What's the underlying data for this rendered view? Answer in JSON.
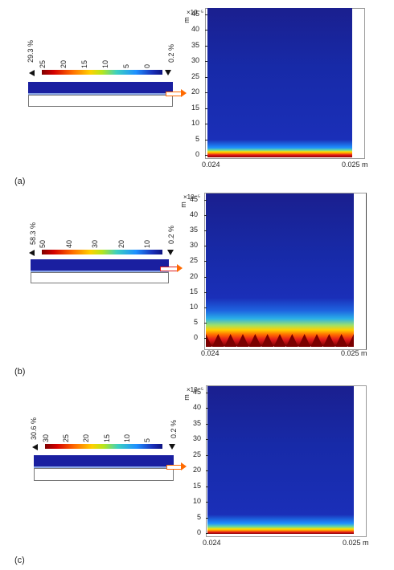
{
  "panels": [
    {
      "label": "(a)",
      "max_value": "29.3 %",
      "min_value": "0.2 %",
      "colorbar_ticks": [
        "25",
        "20",
        "15",
        "10",
        "5",
        "0"
      ],
      "y_exponent": "×10⁻⁵",
      "y_unit": "m",
      "y_ticks": [
        "45",
        "40",
        "35",
        "30",
        "25",
        "20",
        "15",
        "10",
        "5",
        "0"
      ],
      "x_tick_left": "0.024",
      "x_tick_right": "0.025 m",
      "interface": "flat"
    },
    {
      "label": "(b)",
      "max_value": "58.3 %",
      "min_value": "0.2 %",
      "colorbar_ticks": [
        "50",
        "40",
        "30",
        "20",
        "10"
      ],
      "y_exponent": "×10⁻⁵",
      "y_unit": "m",
      "y_ticks": [
        "45",
        "40",
        "35",
        "30",
        "25",
        "20",
        "15",
        "10",
        "5",
        "0"
      ],
      "x_tick_left": "0.024",
      "x_tick_right": "0.025 m",
      "interface": "sawtooth"
    },
    {
      "label": "(c)",
      "max_value": "30.6 %",
      "min_value": "0.2 %",
      "colorbar_ticks": [
        "30",
        "25",
        "20",
        "15",
        "10",
        "5"
      ],
      "y_exponent": "×10⁻⁵",
      "y_unit": "m",
      "y_ticks": [
        "45",
        "40",
        "35",
        "30",
        "25",
        "20",
        "15",
        "10",
        "5",
        "0"
      ],
      "x_tick_left": "0.024",
      "x_tick_right": "0.025 m",
      "interface": "flat"
    }
  ],
  "colors": {
    "field_top": "#1a1f8f",
    "field_hot": "#8b0000",
    "arrow": "#ff6a00"
  }
}
